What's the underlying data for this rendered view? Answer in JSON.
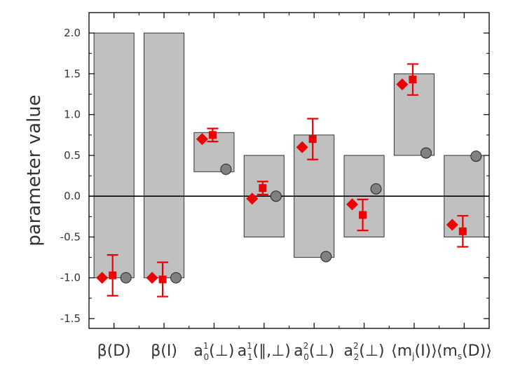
{
  "chart_data": {
    "type": "bar",
    "title": "",
    "xlabel": "",
    "ylabel": "parameter value",
    "ylim": [
      -1.62,
      2.25
    ],
    "yticks": [
      -1.5,
      -1.0,
      -0.5,
      0.0,
      0.5,
      1.0,
      1.5,
      2.0
    ],
    "ytick_labels": [
      "-1.5",
      "-1.0",
      "-0.5",
      "0.0",
      "0.5",
      "1.0",
      "1.5",
      "2.0"
    ],
    "zero_line": true,
    "grid": false,
    "legend": "none",
    "categories": [
      {
        "main": "β(D)",
        "sub": "",
        "sup": "",
        "tail": ""
      },
      {
        "main": "β(I)",
        "sub": "",
        "sup": "",
        "tail": ""
      },
      {
        "main": "a",
        "sub": "0",
        "sup": "1",
        "tail": "(⊥)"
      },
      {
        "main": "a",
        "sub": "1",
        "sup": "1",
        "tail": "(∥,⊥)"
      },
      {
        "main": "a",
        "sub": "0",
        "sup": "2",
        "tail": "(⊥)"
      },
      {
        "main": "a",
        "sub": "2",
        "sup": "2",
        "tail": "(⊥)"
      },
      {
        "main": "⟨m",
        "sub": "j",
        "sup": "",
        "tail": "(I)⟩"
      },
      {
        "main": "⟨m",
        "sub": "s",
        "sup": "",
        "tail": "(D)⟩"
      }
    ],
    "series": [
      {
        "kind": "range-bar",
        "color": "#c0c0c0",
        "edge": "#333333",
        "ranges": [
          [
            -1.0,
            2.0
          ],
          [
            -1.0,
            2.0
          ],
          [
            0.3,
            0.78
          ],
          [
            -0.5,
            0.5
          ],
          [
            -0.75,
            0.75
          ],
          [
            -0.5,
            0.5
          ],
          [
            0.5,
            1.5
          ],
          [
            -0.5,
            0.5
          ]
        ]
      },
      {
        "kind": "diamond",
        "color": "#ee0000",
        "values": [
          -1.0,
          -1.0,
          0.7,
          -0.03,
          0.6,
          -0.1,
          1.37,
          -0.35
        ]
      },
      {
        "kind": "square-errorbar",
        "color": "#ee0000",
        "values": [
          -0.97,
          -1.02,
          0.75,
          0.1,
          0.7,
          -0.23,
          1.43,
          -0.43
        ],
        "errors": [
          0.25,
          0.21,
          0.08,
          0.08,
          0.25,
          0.19,
          0.19,
          0.19
        ]
      },
      {
        "kind": "circle",
        "color": "#808080",
        "values": [
          -1.0,
          -1.0,
          0.33,
          0.0,
          -0.74,
          0.09,
          0.53,
          0.49
        ]
      }
    ]
  }
}
